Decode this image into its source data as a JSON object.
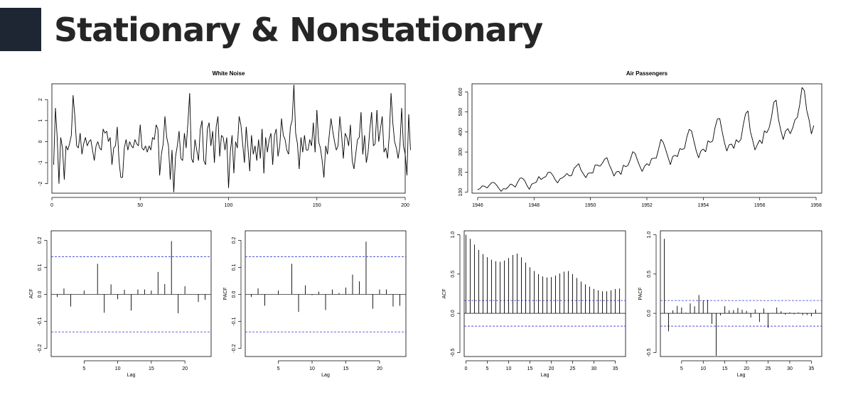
{
  "page": {
    "title": "Stationary & Nonstationary"
  },
  "chart_data": [
    {
      "id": "wn",
      "type": "line",
      "title": "White Noise",
      "xlabel": "",
      "ylabel": "",
      "xlim": [
        0,
        200
      ],
      "ylim": [
        -2.45,
        2.75
      ],
      "x_ticks": [
        0,
        50,
        100,
        150,
        200
      ],
      "y_ticks": [
        -2,
        -1,
        0,
        1,
        2
      ],
      "y": [
        -1.1,
        1.6,
        0.2,
        -2.0,
        0.2,
        -0.3,
        -1.8,
        -0.2,
        -0.4,
        -0.1,
        0.3,
        2.2,
        1.2,
        -0.2,
        -0.3,
        0.4,
        -0.6,
        -0.1,
        0.2,
        -0.2,
        0.0,
        0.1,
        -0.4,
        -0.9,
        -0.2,
        0.0,
        -0.3,
        -0.4,
        0.6,
        0.4,
        0.5,
        0.0,
        0.2,
        -1.1,
        -0.3,
        -0.2,
        0.7,
        -0.9,
        -1.7,
        -1.7,
        -0.3,
        0.1,
        -0.4,
        0.0,
        -0.2,
        -0.3,
        0.1,
        -0.1,
        -0.2,
        0.8,
        -0.3,
        -0.4,
        -0.2,
        -0.5,
        -0.2,
        -0.4,
        0.2,
        0.1,
        0.8,
        0.6,
        -1.6,
        -0.6,
        -0.1,
        1.2,
        0.2,
        -0.2,
        -1.8,
        -0.4,
        -2.4,
        -0.7,
        -0.2,
        0.5,
        -0.8,
        -0.9,
        0.4,
        -0.3,
        0.9,
        2.3,
        -0.8,
        -1.0,
        0.1,
        -0.4,
        -0.9,
        0.6,
        1.0,
        -0.9,
        -1.1,
        0.6,
        0.9,
        -0.2,
        0.5,
        -1.0,
        0.7,
        1.2,
        -0.7,
        0.3,
        0.2,
        -0.4,
        0.2,
        -2.2,
        -0.5,
        0.3,
        -1.5,
        0.0,
        -0.3,
        1.2,
        0.8,
        -0.1,
        -1.0,
        0.7,
        -0.3,
        -1.4,
        0.3,
        -0.6,
        -0.2,
        -0.9,
        0.1,
        -0.8,
        0.6,
        -1.5,
        0.2,
        -0.5,
        0.1,
        0.4,
        -1.1,
        0.3,
        0.6,
        -0.7,
        -0.2,
        1.1,
        0.3,
        0.1,
        -0.4,
        -0.6,
        0.7,
        1.0,
        2.7,
        0.4,
        -0.1,
        -1.3,
        0.2,
        -0.5,
        0.3,
        -0.4,
        -0.4,
        0.1,
        -0.2,
        0.9,
        -0.5,
        1.5,
        0.0,
        -0.3,
        -0.9,
        -1.7,
        -0.2,
        -0.6,
        0.3,
        1.1,
        0.5,
        0.0,
        -0.4,
        -0.2,
        1.2,
        0.3,
        -0.8,
        0.4,
        0.2,
        -0.2,
        0.8,
        -0.9,
        -1.3,
        -0.6,
        0.1,
        0.2,
        1.4,
        -0.6,
        0.3,
        -1.0,
        -0.5,
        0.6,
        1.4,
        -0.2,
        -0.1,
        1.5,
        0.0,
        0.6,
        1.2,
        -0.5,
        -0.3,
        -0.8,
        0.3,
        2.3,
        0.9,
        0.0,
        -0.3,
        -0.8,
        -0.2,
        1.6,
        -0.2,
        -0.6,
        -1.6,
        1.3,
        -0.4
      ]
    },
    {
      "id": "ap",
      "type": "line",
      "title": "Air Passengers",
      "xlabel": "",
      "ylabel": "",
      "xlim": [
        1945.8,
        1958.2
      ],
      "ylim": [
        95,
        640
      ],
      "x_ticks": [
        1946,
        1948,
        1950,
        1952,
        1954,
        1956,
        1958
      ],
      "y_ticks": [
        100,
        200,
        300,
        400,
        500,
        600
      ],
      "x_start": 1946.0,
      "x_step": 0.0833333,
      "y": [
        112,
        118,
        132,
        129,
        121,
        135,
        148,
        148,
        136,
        119,
        104,
        118,
        115,
        126,
        141,
        135,
        125,
        149,
        170,
        170,
        158,
        133,
        114,
        140,
        145,
        150,
        178,
        163,
        172,
        178,
        199,
        199,
        184,
        162,
        146,
        166,
        171,
        180,
        193,
        181,
        183,
        218,
        230,
        242,
        209,
        191,
        172,
        194,
        196,
        196,
        236,
        235,
        229,
        243,
        264,
        272,
        237,
        211,
        180,
        201,
        204,
        188,
        235,
        227,
        234,
        264,
        302,
        293,
        259,
        229,
        203,
        229,
        242,
        233,
        267,
        269,
        270,
        315,
        364,
        347,
        312,
        274,
        237,
        278,
        284,
        277,
        317,
        313,
        318,
        374,
        413,
        405,
        355,
        306,
        271,
        306,
        315,
        301,
        356,
        348,
        355,
        422,
        465,
        467,
        404,
        347,
        305,
        336,
        340,
        318,
        362,
        348,
        363,
        435,
        491,
        505,
        404,
        359,
        310,
        337,
        360,
        342,
        406,
        396,
        420,
        472,
        548,
        559,
        463,
        407,
        362,
        405,
        417,
        391,
        419,
        461,
        472,
        535,
        622,
        606,
        508,
        461,
        390,
        432
      ]
    },
    {
      "id": "wn_acf",
      "type": "bar",
      "title": "",
      "xlabel": "Lag",
      "ylabel": "ACF",
      "xlim": [
        0.1,
        23.9
      ],
      "ylim": [
        -0.23,
        0.235
      ],
      "x_ticks": [
        5,
        10,
        15,
        20
      ],
      "y_ticks": [
        -0.2,
        -0.1,
        0.0,
        0.1,
        0.2
      ],
      "ci": 0.139,
      "lags": [
        1,
        2,
        3,
        4,
        5,
        6,
        7,
        8,
        9,
        10,
        11,
        12,
        13,
        14,
        15,
        16,
        17,
        18,
        19,
        20,
        21,
        22,
        23
      ],
      "values": [
        -0.01,
        0.022,
        -0.045,
        0.0,
        0.014,
        0.0,
        0.113,
        -0.068,
        0.037,
        -0.018,
        0.017,
        -0.06,
        0.018,
        0.018,
        0.014,
        0.083,
        0.038,
        0.197,
        -0.07,
        0.03,
        0.0,
        -0.028,
        -0.02
      ]
    },
    {
      "id": "wn_pacf",
      "type": "bar",
      "title": "",
      "xlabel": "Lag",
      "ylabel": "PACF",
      "xlim": [
        0.1,
        23.9
      ],
      "ylim": [
        -0.23,
        0.235
      ],
      "x_ticks": [
        5,
        10,
        15,
        20
      ],
      "y_ticks": [
        -0.2,
        -0.1,
        0.0,
        0.1,
        0.2
      ],
      "ci": 0.139,
      "lags": [
        1,
        2,
        3,
        4,
        5,
        6,
        7,
        8,
        9,
        10,
        11,
        12,
        13,
        14,
        15,
        16,
        17,
        18,
        19,
        20,
        21,
        22,
        23
      ],
      "values": [
        -0.01,
        0.022,
        -0.042,
        0.0,
        0.014,
        0.0,
        0.113,
        -0.065,
        0.033,
        -0.003,
        0.01,
        -0.058,
        0.018,
        0.005,
        0.025,
        0.073,
        0.048,
        0.195,
        -0.053,
        0.018,
        0.018,
        -0.045,
        -0.042
      ]
    },
    {
      "id": "ap_acf",
      "type": "bar",
      "title": "",
      "xlabel": "Lag",
      "ylabel": "ACF",
      "xlim": [
        -0.4,
        37.4
      ],
      "ylim": [
        -0.55,
        1.05
      ],
      "x_ticks": [
        0,
        5,
        10,
        15,
        20,
        25,
        30,
        35
      ],
      "y_ticks": [
        -0.5,
        0.0,
        0.5,
        1.0
      ],
      "ci": 0.163,
      "lags": [
        0,
        1,
        2,
        3,
        4,
        5,
        6,
        7,
        8,
        9,
        10,
        11,
        12,
        13,
        14,
        15,
        16,
        17,
        18,
        19,
        20,
        21,
        22,
        23,
        24,
        25,
        26,
        27,
        28,
        29,
        30,
        31,
        32,
        33,
        34,
        35,
        36
      ],
      "values": [
        1.0,
        0.948,
        0.876,
        0.807,
        0.753,
        0.714,
        0.682,
        0.663,
        0.656,
        0.671,
        0.703,
        0.743,
        0.76,
        0.713,
        0.646,
        0.586,
        0.538,
        0.499,
        0.469,
        0.457,
        0.461,
        0.48,
        0.507,
        0.53,
        0.538,
        0.5,
        0.449,
        0.404,
        0.369,
        0.339,
        0.311,
        0.292,
        0.28,
        0.28,
        0.293,
        0.309,
        0.315
      ]
    },
    {
      "id": "ap_pacf",
      "type": "bar",
      "title": "",
      "xlabel": "Lag",
      "ylabel": "PACF",
      "xlim": [
        0.1,
        37.4
      ],
      "ylim": [
        -0.55,
        1.05
      ],
      "x_ticks": [
        5,
        10,
        15,
        20,
        25,
        30,
        35
      ],
      "y_ticks": [
        -0.5,
        0.0,
        0.5,
        1.0
      ],
      "ci": 0.163,
      "lags": [
        1,
        2,
        3,
        4,
        5,
        6,
        7,
        8,
        9,
        10,
        11,
        12,
        13,
        14,
        15,
        16,
        17,
        18,
        19,
        20,
        21,
        22,
        23,
        24,
        25,
        26,
        27,
        28,
        29,
        30,
        31,
        32,
        33,
        34,
        35,
        36
      ],
      "values": [
        0.948,
        -0.229,
        0.038,
        0.094,
        0.074,
        0.008,
        0.126,
        0.09,
        0.232,
        0.166,
        0.171,
        -0.135,
        -0.54,
        -0.027,
        0.091,
        0.038,
        0.04,
        0.069,
        0.046,
        0.031,
        -0.054,
        0.05,
        -0.11,
        0.061,
        -0.183,
        0.004,
        0.074,
        0.026,
        -0.018,
        0.012,
        -0.012,
        0.011,
        -0.022,
        -0.021,
        -0.037,
        0.048
      ]
    }
  ]
}
